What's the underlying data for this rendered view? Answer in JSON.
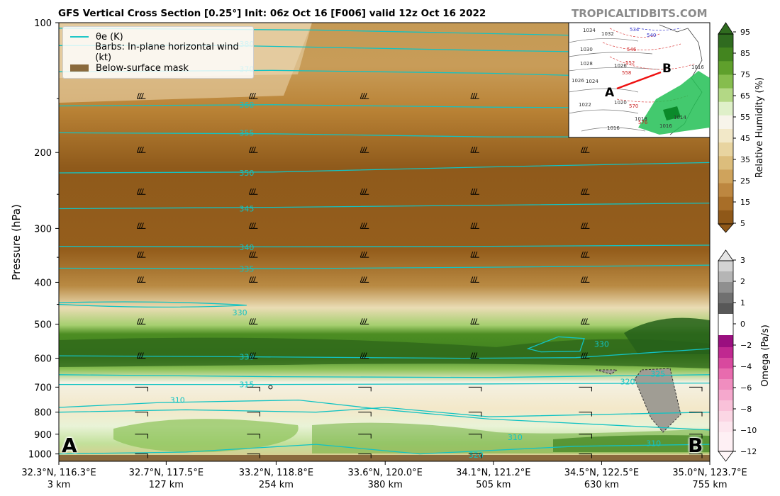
{
  "header": {
    "title": "GFS Vertical Cross Section [0.25°] Init: 06z Oct 16 [F006] valid 12z Oct 16 2022",
    "brand": "TROPICALTIDBITS.COM"
  },
  "legend": {
    "theta_e": "θe (K)",
    "barbs": "Barbs: In-plane horizontal wind (kt)",
    "mask": "Below-surface mask"
  },
  "points": {
    "start": "A",
    "end": "B"
  },
  "chart_data": {
    "type": "heatmap",
    "ylabel": "Pressure (hPa)",
    "y_scale": "log",
    "ylim": [
      1040,
      100
    ],
    "y_ticks": [
      100,
      200,
      300,
      400,
      500,
      600,
      700,
      800,
      900,
      1000
    ],
    "x_ticks": [
      {
        "coord": "32.3°N, 116.3°E",
        "dist": "3 km",
        "km": 3
      },
      {
        "coord": "32.7°N, 117.5°E",
        "dist": "127 km",
        "km": 127
      },
      {
        "coord": "33.2°N, 118.8°E",
        "dist": "254 km",
        "km": 254
      },
      {
        "coord": "33.6°N, 120.0°E",
        "dist": "380 km",
        "km": 380
      },
      {
        "coord": "34.1°N, 121.2°E",
        "dist": "505 km",
        "km": 505
      },
      {
        "coord": "34.5°N, 122.5°E",
        "dist": "630 km",
        "km": 630
      },
      {
        "coord": "35.0°N, 123.7°E",
        "dist": "755 km",
        "km": 755
      }
    ],
    "xlim": [
      3,
      755
    ],
    "rh_colorbar": {
      "label": "Relative Humidity (%)",
      "ticks": [
        "95",
        "85",
        "75",
        "65",
        "55",
        "45",
        "35",
        "25",
        "15",
        "5"
      ],
      "colors": [
        "#2f6b1f",
        "#43851f",
        "#5fa02c",
        "#86bd4e",
        "#b3d885",
        "#dff0c9",
        "#f7f4ea",
        "#f2e8c8",
        "#e8d4a0",
        "#dcbd7c",
        "#cfa35c",
        "#bd8740",
        "#a86e28",
        "#8f5818"
      ]
    },
    "omega_colorbar": {
      "label": "Omega (Pa/s)",
      "ticks": [
        "3",
        "2",
        "1",
        "0",
        "−2",
        "−4",
        "−6",
        "−8",
        "−10",
        "−12"
      ]
    },
    "theta_e_labels": [
      {
        "text": "380",
        "km": 220,
        "p": 112
      },
      {
        "text": "370",
        "km": 220,
        "p": 128
      },
      {
        "text": "360",
        "km": 220,
        "p": 155
      },
      {
        "text": "355",
        "km": 220,
        "p": 180
      },
      {
        "text": "350",
        "km": 220,
        "p": 223
      },
      {
        "text": "345",
        "km": 220,
        "p": 270
      },
      {
        "text": "340",
        "km": 220,
        "p": 332
      },
      {
        "text": "335",
        "km": 220,
        "p": 372
      },
      {
        "text": "330",
        "km": 220,
        "p": 595
      },
      {
        "text": "315",
        "km": 220,
        "p": 690
      },
      {
        "text": "310",
        "km": 140,
        "p": 750
      },
      {
        "text": "330",
        "km": 630,
        "p": 556
      },
      {
        "text": "325",
        "km": 695,
        "p": 652
      },
      {
        "text": "320",
        "km": 660,
        "p": 680
      },
      {
        "text": "310",
        "km": 530,
        "p": 915
      },
      {
        "text": "320",
        "km": 485,
        "p": 1005
      },
      {
        "text": "310",
        "km": 690,
        "p": 945
      },
      {
        "text": "330",
        "km": 212,
        "p": 470
      }
    ]
  },
  "inset_map": {
    "label_a": "A",
    "label_b": "B",
    "isobars": [
      "1034",
      "1032",
      "1030",
      "1028",
      "1026",
      "1026",
      "1024",
      "1022",
      "1020",
      "1018",
      "1016",
      "1016",
      "1014",
      "1016"
    ],
    "heights": [
      "534",
      "540",
      "546",
      "552",
      "558",
      "570",
      "576"
    ]
  }
}
